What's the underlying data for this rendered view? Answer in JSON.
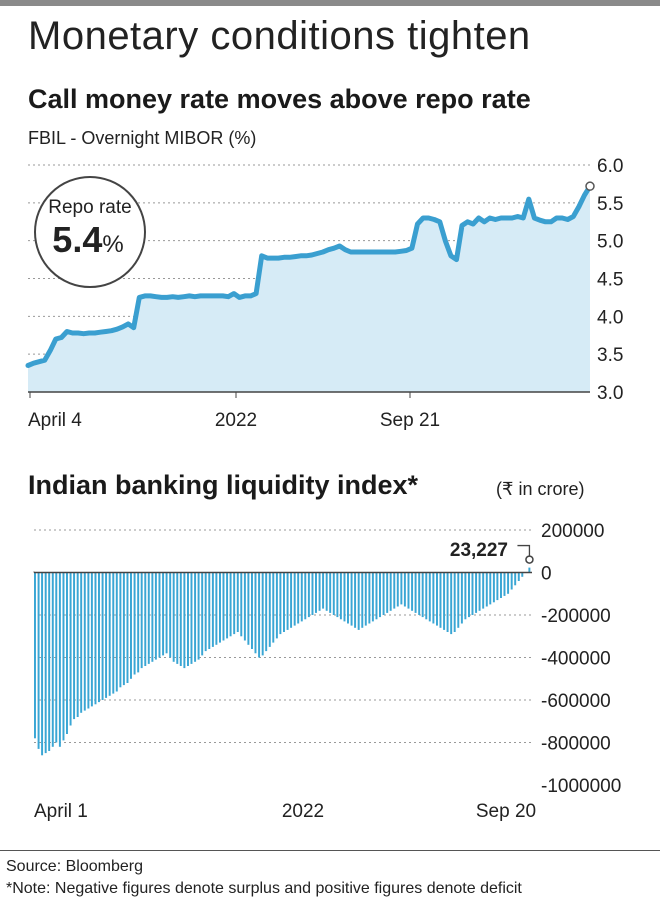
{
  "header": {
    "title": "Monetary conditions tighten",
    "source": "Source: Bloomberg",
    "note": "*Note: Negative figures denote surplus and positive figures denote deficit"
  },
  "colors": {
    "line": "#3a9fd0",
    "area": "#d6ebf6",
    "bar": "#3aa6d4",
    "text": "#222222"
  },
  "chart_data": [
    {
      "type": "area",
      "title": "Call money rate moves above repo rate",
      "unit_label": "FBIL - Overnight MIBOR (%)",
      "ylim": [
        3.0,
        6.0
      ],
      "y_ticks": [
        "6.0",
        "5.5",
        "5.0",
        "4.5",
        "4.0",
        "3.5",
        "3.0"
      ],
      "x_tick_labels": [
        "April 4",
        "2022",
        "Sep 21"
      ],
      "annotation": {
        "label": "Repo rate",
        "value_big": "5.4",
        "value_unit": "%"
      },
      "series": [
        {
          "values": [
            3.35,
            3.38,
            3.4,
            3.42,
            3.55,
            3.7,
            3.72,
            3.8,
            3.78,
            3.78,
            3.77,
            3.78,
            3.78,
            3.79,
            3.8,
            3.81,
            3.83,
            3.86,
            3.9,
            3.85,
            4.25,
            4.27,
            4.27,
            4.26,
            4.25,
            4.25,
            4.26,
            4.25,
            4.26,
            4.27,
            4.26,
            4.27,
            4.27,
            4.27,
            4.27,
            4.27,
            4.26,
            4.3,
            4.25,
            4.27,
            4.27,
            4.3,
            4.8,
            4.77,
            4.77,
            4.77,
            4.78,
            4.78,
            4.79,
            4.8,
            4.8,
            4.81,
            4.83,
            4.85,
            4.88,
            4.9,
            4.93,
            4.88,
            4.85,
            4.85,
            4.85,
            4.85,
            4.85,
            4.85,
            4.85,
            4.85,
            4.85,
            4.86,
            4.87,
            4.9,
            5.22,
            5.3,
            5.3,
            5.28,
            5.25,
            5.0,
            4.8,
            4.75,
            5.2,
            5.25,
            5.22,
            5.3,
            5.25,
            5.3,
            5.28,
            5.3,
            5.3,
            5.3,
            5.32,
            5.3,
            5.55,
            5.3,
            5.27,
            5.25,
            5.25,
            5.3,
            5.3,
            5.28,
            5.32,
            5.45,
            5.6,
            5.72
          ]
        }
      ]
    },
    {
      "type": "bar",
      "title": "Indian banking liquidity index*",
      "unit_label": "(₹ in crore)",
      "ylim": [
        -1000000,
        200000
      ],
      "y_ticks": [
        "200000",
        "0",
        "-200000",
        "-400000",
        "-600000",
        "-800000",
        "-1000000"
      ],
      "x_tick_labels": [
        "April 1",
        "2022",
        "Sep 20"
      ],
      "annotation": {
        "label": "23,227",
        "value": 23227
      },
      "series": [
        {
          "values": [
            -780000,
            -830000,
            -860000,
            -850000,
            -840000,
            -820000,
            -800000,
            -820000,
            -790000,
            -760000,
            -720000,
            -690000,
            -680000,
            -660000,
            -650000,
            -640000,
            -630000,
            -620000,
            -610000,
            -600000,
            -590000,
            -580000,
            -570000,
            -560000,
            -540000,
            -530000,
            -520000,
            -500000,
            -480000,
            -470000,
            -450000,
            -440000,
            -430000,
            -420000,
            -410000,
            -400000,
            -390000,
            -380000,
            -400000,
            -420000,
            -430000,
            -440000,
            -450000,
            -440000,
            -430000,
            -420000,
            -410000,
            -390000,
            -370000,
            -360000,
            -350000,
            -340000,
            -330000,
            -320000,
            -310000,
            -300000,
            -290000,
            -280000,
            -300000,
            -320000,
            -340000,
            -360000,
            -380000,
            -400000,
            -390000,
            -370000,
            -350000,
            -330000,
            -310000,
            -290000,
            -280000,
            -270000,
            -260000,
            -250000,
            -240000,
            -230000,
            -220000,
            -210000,
            -200000,
            -190000,
            -180000,
            -170000,
            -180000,
            -190000,
            -200000,
            -210000,
            -220000,
            -230000,
            -240000,
            -250000,
            -260000,
            -270000,
            -260000,
            -250000,
            -240000,
            -230000,
            -220000,
            -210000,
            -200000,
            -190000,
            -180000,
            -170000,
            -160000,
            -150000,
            -160000,
            -170000,
            -180000,
            -190000,
            -200000,
            -210000,
            -220000,
            -230000,
            -240000,
            -250000,
            -260000,
            -270000,
            -280000,
            -290000,
            -280000,
            -260000,
            -240000,
            -220000,
            -210000,
            -200000,
            -190000,
            -180000,
            -170000,
            -160000,
            -150000,
            -140000,
            -130000,
            -120000,
            -110000,
            -100000,
            -80000,
            -60000,
            -40000,
            -20000,
            0,
            23227
          ]
        }
      ]
    }
  ]
}
